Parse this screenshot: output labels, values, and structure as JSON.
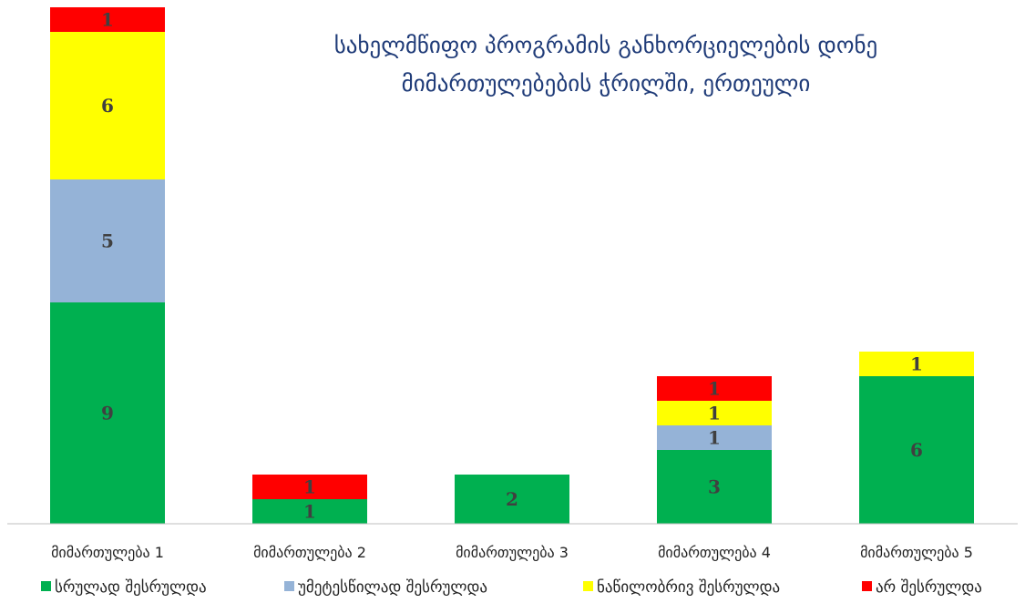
{
  "chart_data": {
    "type": "bar",
    "stacked": true,
    "title_lines": [
      "სახელმწიფო პროგრამის განხორციელების დონე",
      "მიმართულებების ჭრილში, ერთეული"
    ],
    "xlabel": "",
    "ylabel": "",
    "ylim": [
      0,
      21
    ],
    "grid": false,
    "legend_position": "bottom",
    "categories": [
      "მიმართულება 1",
      "მიმართულება 2",
      "მიმართულება 3",
      "მიმართულება 4",
      "მიმართულება 5"
    ],
    "series": [
      {
        "name": "სრულად შესრულდა",
        "color": "#00b050",
        "values": [
          9,
          1,
          2,
          3,
          6
        ]
      },
      {
        "name": "უმეტესწილად შესრულდა",
        "color": "#95b3d7",
        "values": [
          5,
          0,
          0,
          1,
          0
        ]
      },
      {
        "name": "ნაწილობრივ შესრულდა",
        "color": "#ffff00",
        "values": [
          6,
          0,
          0,
          1,
          1
        ]
      },
      {
        "name": "არ შესრულდა",
        "color": "#ff0000",
        "values": [
          1,
          1,
          0,
          1,
          0
        ]
      }
    ]
  }
}
